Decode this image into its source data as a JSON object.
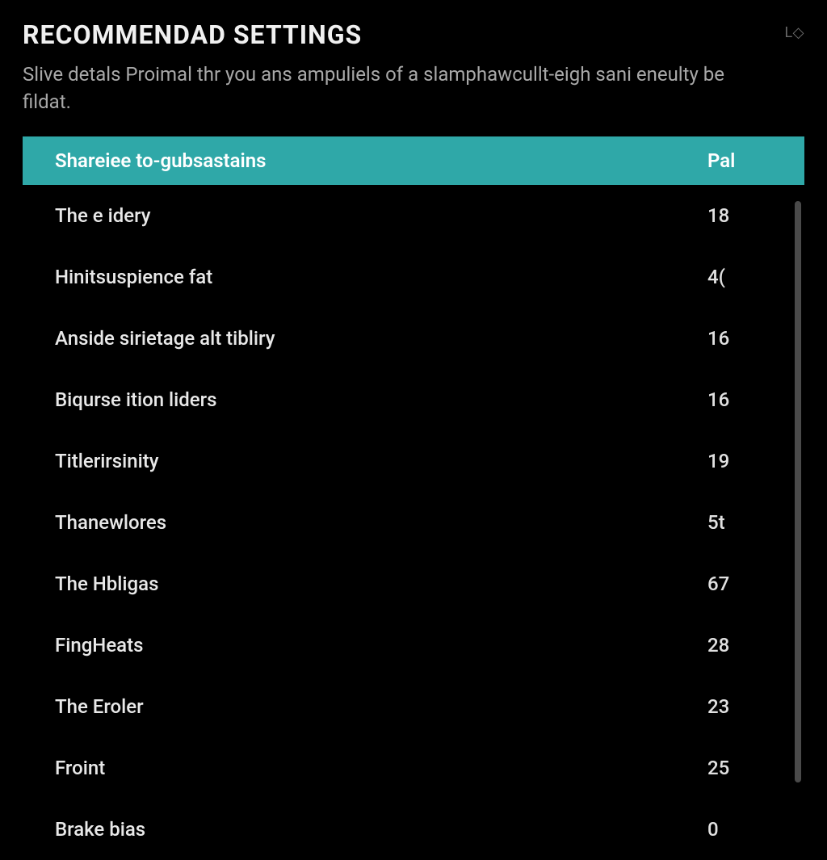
{
  "header": {
    "title": "RECOMMENDAD SETTINGS",
    "corner": "L◇"
  },
  "description": "Slive detals Proimal thr you ans ampuliels of a slamphawcullt-eigh sani eneulty be fildat.",
  "table": {
    "header": {
      "label": "Shareiee to-gubsastains",
      "value": "Pal"
    },
    "rows": [
      {
        "label": "The e idery",
        "value": "18"
      },
      {
        "label": "Hinitsuspience fat",
        "value": "4("
      },
      {
        "label": "Anside sirietage alt tibliry",
        "value": "16"
      },
      {
        "label": "Biqurse ition liders",
        "value": "16"
      },
      {
        "label": "Titlerirsinity",
        "value": "19"
      },
      {
        "label": "Thanewlores",
        "value": "5t"
      },
      {
        "label": "The Hbligas",
        "value": "67"
      },
      {
        "label": "FingHeats",
        "value": "28"
      },
      {
        "label": "The Eroler",
        "value": "23"
      },
      {
        "label": "Froint",
        "value": "25"
      },
      {
        "label": "Brake bias",
        "value": "0"
      }
    ]
  },
  "colors": {
    "background": "#000000",
    "header_bg": "#2fa8a8",
    "text_primary": "#e8e8e8",
    "text_secondary": "#a8a8a8",
    "scrollbar": "#4a4a4a"
  }
}
